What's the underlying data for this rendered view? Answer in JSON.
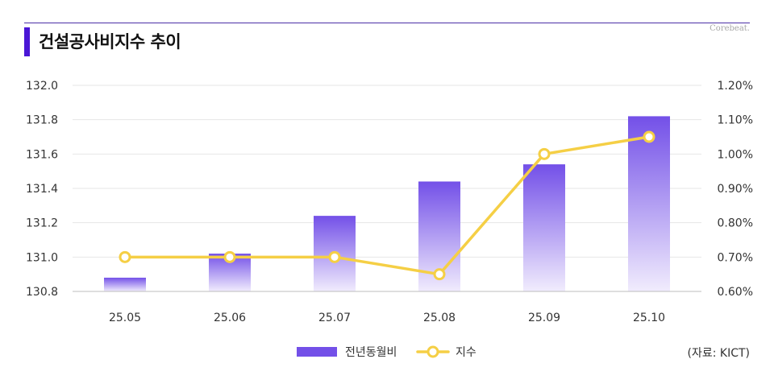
{
  "header": {
    "title": "건설공사비지수 추이",
    "brand": "Corebeat."
  },
  "source": "(자료: KICT)",
  "colors": {
    "bar_top": "#7350e8",
    "bar_bottom": "#f1ecfd",
    "line": "#f5cf45",
    "accent": "#4a16d6"
  },
  "chart_data": {
    "type": "bar",
    "categories": [
      "25.05",
      "25.06",
      "25.07",
      "25.08",
      "25.09",
      "25.10"
    ],
    "series": [
      {
        "name": "전년동월비",
        "type": "bar",
        "axis": "right",
        "values": [
          0.64,
          0.71,
          0.82,
          0.92,
          0.97,
          1.11
        ]
      },
      {
        "name": "지수",
        "type": "line",
        "axis": "left",
        "values": [
          131.0,
          131.0,
          131.0,
          130.9,
          131.6,
          131.7
        ]
      }
    ],
    "y_left": {
      "min": 130.8,
      "max": 132.0,
      "ticks": [
        "132.0",
        "131.8",
        "131.6",
        "131.4",
        "131.2",
        "131.0",
        "130.8"
      ]
    },
    "y_right": {
      "min": 0.6,
      "max": 1.2,
      "ticks": [
        "1.20%",
        "1.10%",
        "1.00%",
        "0.90%",
        "0.80%",
        "0.70%",
        "0.60%"
      ]
    },
    "grid": true,
    "legend": "bottom-center"
  }
}
